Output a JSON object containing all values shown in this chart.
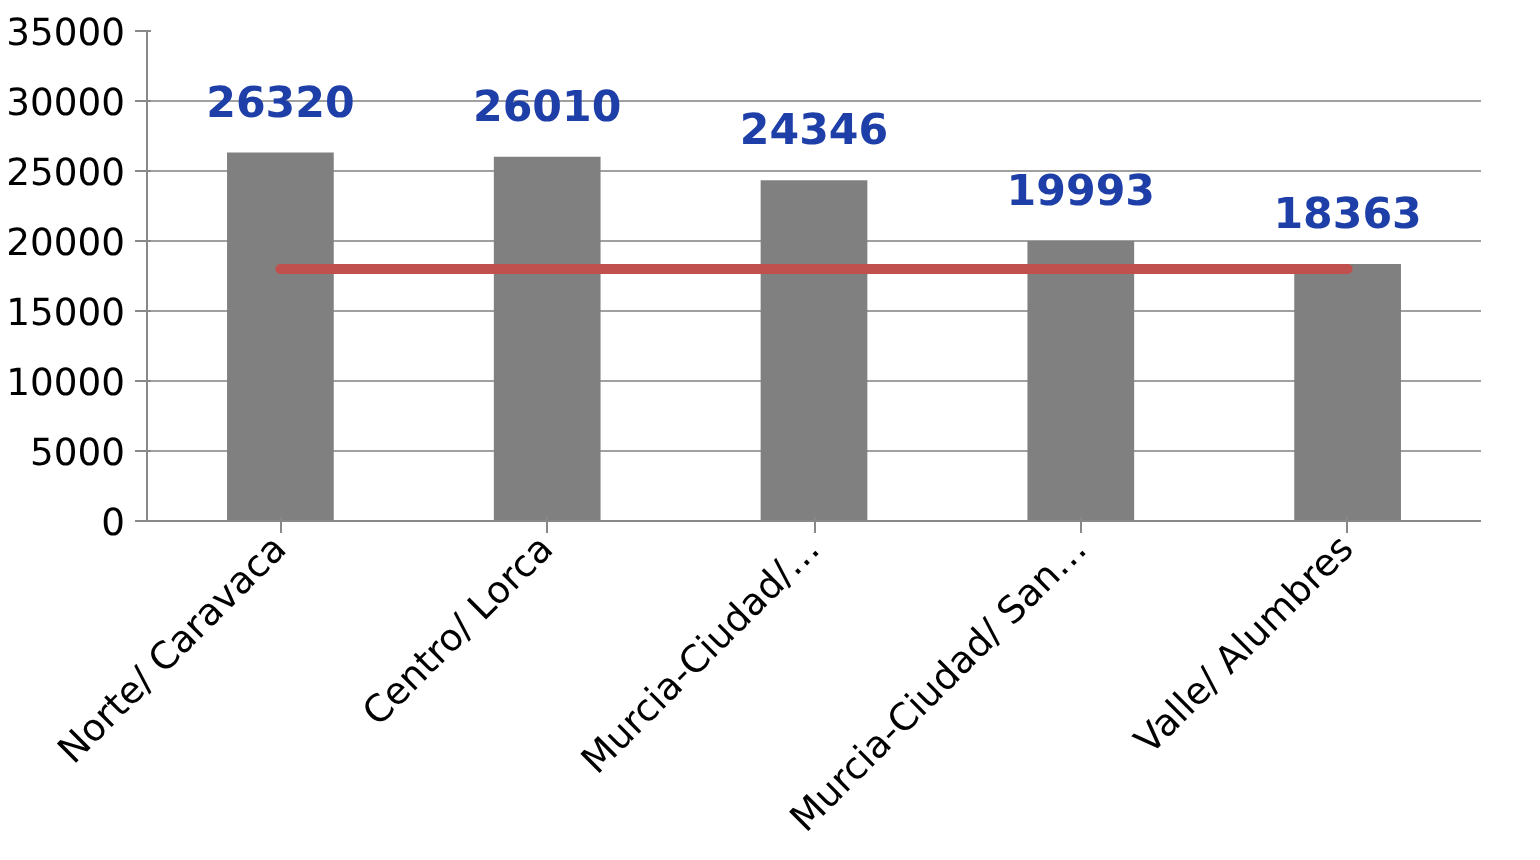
{
  "chart_data": {
    "type": "bar",
    "categories": [
      "Norte/ Caravaca",
      "Centro/ Lorca",
      "Murcia-Ciudad/…",
      "Murcia-Ciudad/ San…",
      "Valle/ Alumbres"
    ],
    "series": [
      {
        "color": "#808080",
        "values": [
          26320,
          26010,
          24346,
          19993,
          18363
        ],
        "value_labels": [
          "26320",
          "26010",
          "24346",
          "19993",
          "18363"
        ]
      },
      {
        "type": "line",
        "color": "#c0504d",
        "values": [
          18000,
          18000,
          18000,
          18000,
          18000
        ]
      }
    ],
    "ylim": [
      0,
      35000
    ],
    "yticks": [
      0,
      5000,
      10000,
      15000,
      20000,
      25000,
      30000,
      35000
    ],
    "grid": "y"
  }
}
